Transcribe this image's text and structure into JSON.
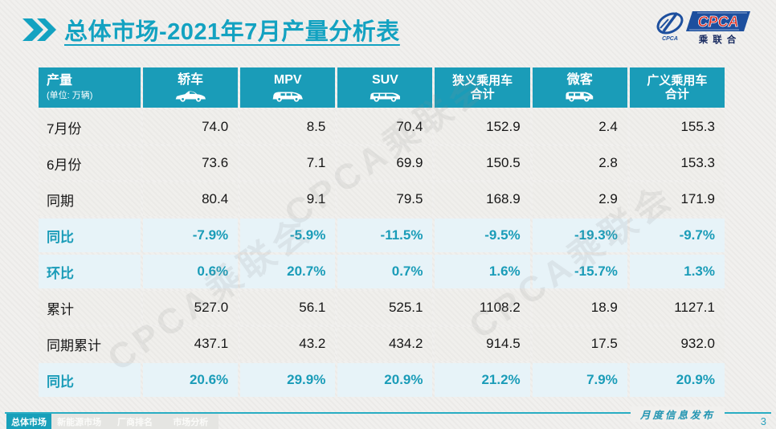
{
  "page": {
    "title": "总体市场-2021年7月产量分析表",
    "watermark": "CPCA乘联会",
    "footer_note": "月度信息发布",
    "page_number": "3"
  },
  "logo": {
    "name": "CPCA",
    "subtitle": "乘联合",
    "brand_blue": "#1d4f9e",
    "brand_red": "#d8281e"
  },
  "colors": {
    "header_teal": "#1a9cb8",
    "highlight_row_bg": "#e7f3f8",
    "accent_text": "#1a9cb8",
    "title_teal": "#13a2c1"
  },
  "table": {
    "header": {
      "col0_title": "产量",
      "col0_unit": "(单位: 万辆)",
      "columns": [
        {
          "label": "轿车",
          "label2": "",
          "icon": "sedan-icon"
        },
        {
          "label": "MPV",
          "label2": "",
          "icon": "mpv-icon"
        },
        {
          "label": "SUV",
          "label2": "",
          "icon": "suv-icon"
        },
        {
          "label": "狭义乘用车",
          "label2": "合计",
          "icon": ""
        },
        {
          "label": "微客",
          "label2": "",
          "icon": "microvan-icon"
        },
        {
          "label": "广义乘用车",
          "label2": "合计",
          "icon": ""
        }
      ]
    },
    "rows": [
      {
        "label": "7月份",
        "highlight": false,
        "values": [
          "74.0",
          "8.5",
          "70.4",
          "152.9",
          "2.4",
          "155.3"
        ]
      },
      {
        "label": "6月份",
        "highlight": false,
        "values": [
          "73.6",
          "7.1",
          "69.9",
          "150.5",
          "2.8",
          "153.3"
        ]
      },
      {
        "label": "同期",
        "highlight": false,
        "values": [
          "80.4",
          "9.1",
          "79.5",
          "168.9",
          "2.9",
          "171.9"
        ]
      },
      {
        "label": "同比",
        "highlight": true,
        "values": [
          "-7.9%",
          "-5.9%",
          "-11.5%",
          "-9.5%",
          "-19.3%",
          "-9.7%"
        ]
      },
      {
        "label": "环比",
        "highlight": true,
        "values": [
          "0.6%",
          "20.7%",
          "0.7%",
          "1.6%",
          "-15.7%",
          "1.3%"
        ]
      },
      {
        "label": "累计",
        "highlight": false,
        "values": [
          "527.0",
          "56.1",
          "525.1",
          "1108.2",
          "18.9",
          "1127.1"
        ]
      },
      {
        "label": "同期累计",
        "highlight": false,
        "values": [
          "437.1",
          "43.2",
          "434.2",
          "914.5",
          "17.5",
          "932.0"
        ]
      },
      {
        "label": "同比",
        "highlight": true,
        "values": [
          "20.6%",
          "29.9%",
          "20.9%",
          "21.2%",
          "7.9%",
          "20.9%"
        ]
      }
    ]
  },
  "footer_tabs": [
    {
      "label": "总体市场",
      "active": true
    },
    {
      "label": "新能源市场",
      "active": false
    },
    {
      "label": "厂商排名",
      "active": false
    },
    {
      "label": "市场分析",
      "active": false
    }
  ]
}
